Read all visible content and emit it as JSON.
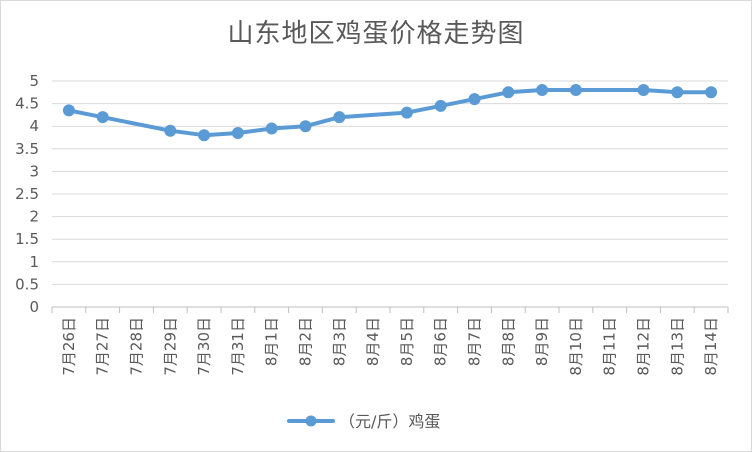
{
  "chart_data": {
    "type": "line",
    "title": "山东地区鸡蛋价格走势图",
    "xlabel": "",
    "ylabel": "",
    "ylim": [
      0,
      5
    ],
    "y_ticks": [
      "0",
      "0.5",
      "1",
      "1.5",
      "2",
      "2.5",
      "3",
      "3.5",
      "4",
      "4.5",
      "5"
    ],
    "grid": true,
    "legend_position": "bottom",
    "categories": [
      "7月26日",
      "7月27日",
      "7月28日",
      "7月29日",
      "7月30日",
      "7月31日",
      "8月1日",
      "8月2日",
      "8月3日",
      "8月4日",
      "8月5日",
      "8月6日",
      "8月7日",
      "8月8日",
      "8月9日",
      "8月10日",
      "8月11日",
      "8月12日",
      "8月13日",
      "8月14日"
    ],
    "series": [
      {
        "name": "（元/斤）鸡蛋",
        "color": "#5b9bd5",
        "values": [
          4.35,
          4.2,
          null,
          3.9,
          3.8,
          3.85,
          3.95,
          4.0,
          4.2,
          null,
          4.3,
          4.45,
          4.6,
          4.75,
          4.8,
          4.8,
          null,
          4.8,
          4.75,
          4.75
        ]
      }
    ]
  }
}
